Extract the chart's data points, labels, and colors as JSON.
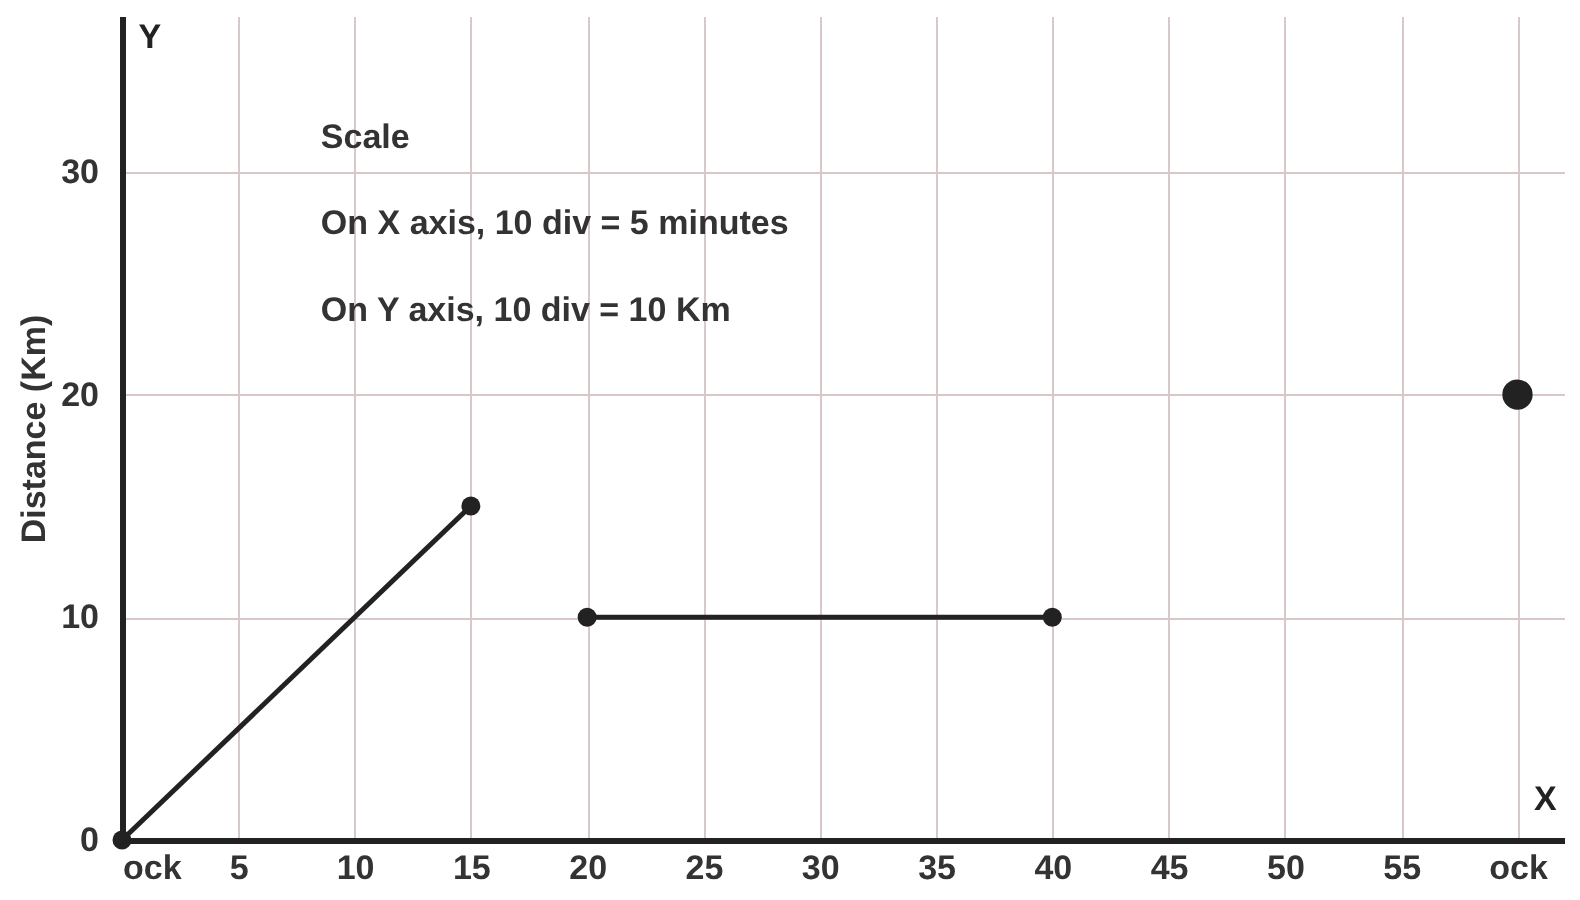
{
  "chart_data": {
    "type": "line",
    "ylabel": "Distance (Km)",
    "annotations": [
      "Scale",
      "On X axis,  10 div = 5 minutes",
      "On Y axis,  10 div = 10 Km",
      "X",
      "Y"
    ],
    "series": [
      {
        "x": [
          0,
          15
        ],
        "values": [
          0,
          15
        ],
        "color": "#222222",
        "marker": "circle"
      },
      {
        "x": [
          20,
          40
        ],
        "values": [
          10,
          10
        ],
        "color": "#222222",
        "marker": "circle"
      },
      {
        "type": "scatter",
        "x": [
          60
        ],
        "values": [
          20
        ],
        "color": "#222222",
        "marker": "circle"
      }
    ],
    "xlim": [
      0,
      62
    ],
    "ylim": [
      0,
      37
    ],
    "xticks": [
      {
        "value": 0,
        "label": "ock"
      },
      5,
      10,
      15,
      20,
      25,
      30,
      35,
      40,
      45,
      50,
      55,
      {
        "value": 60,
        "label": "ock"
      }
    ],
    "yticks": [
      0,
      10,
      20,
      30
    ],
    "grid": true
  }
}
